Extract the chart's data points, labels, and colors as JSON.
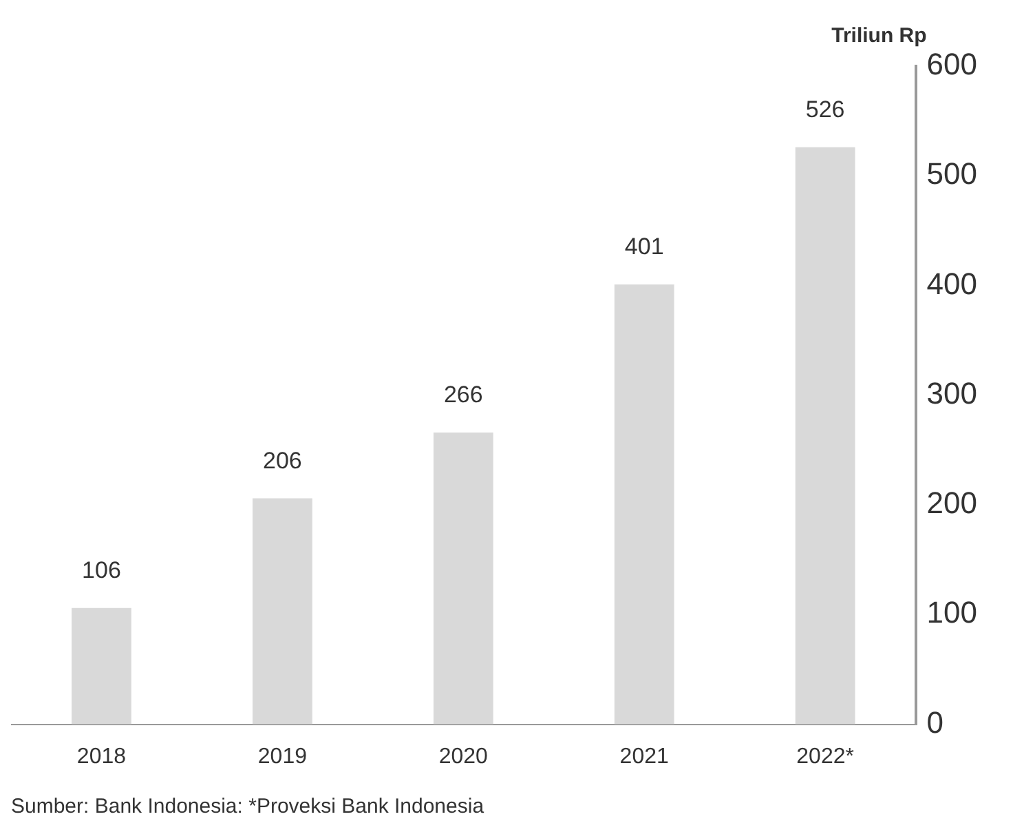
{
  "chart_data": {
    "type": "bar",
    "ylabel": "Triliun Rp",
    "categories": [
      "2018",
      "2019",
      "2020",
      "2021",
      "2022*"
    ],
    "values": [
      106,
      206,
      266,
      401,
      526
    ],
    "color": "#d9d9d9",
    "ylim": [
      0,
      600
    ],
    "yticks": [
      0,
      100,
      200,
      300,
      400,
      500,
      600
    ],
    "grid": false,
    "data_labels": true,
    "annotations": [
      "Sumber: Bank Indonesia: *Proveksi Bank Indonesia"
    ]
  }
}
